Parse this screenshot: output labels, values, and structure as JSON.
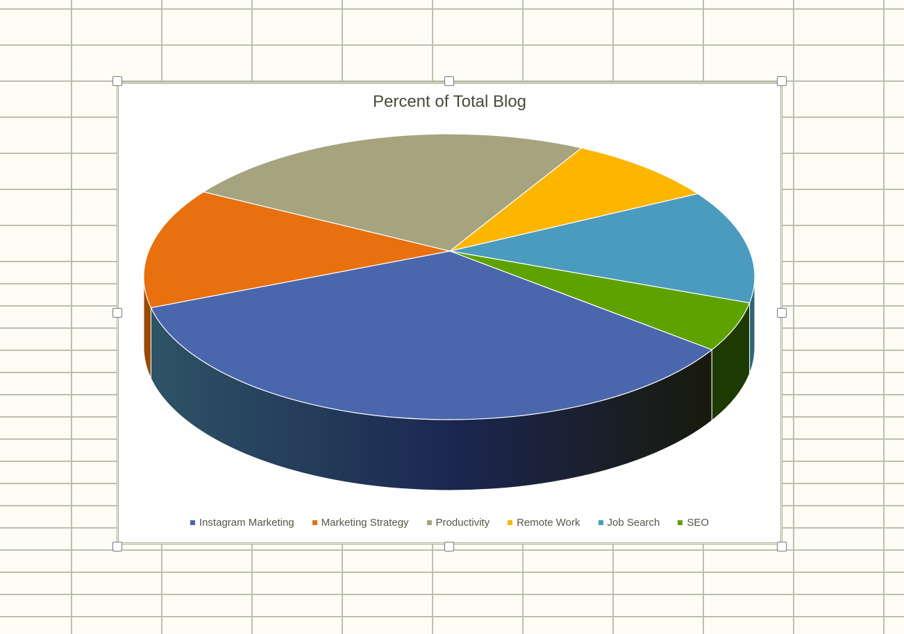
{
  "chart_data": {
    "type": "pie",
    "style": "3d",
    "title": "Percent of Total Blog",
    "legend_position": "bottom",
    "categories": [
      "Instagram Marketing",
      "Marketing Strategy",
      "Productivity",
      "Remote Work",
      "Job Search",
      "SEO"
    ],
    "values": [
      38,
      13.6,
      22,
      8,
      12.8,
      5.6
    ],
    "colors": [
      "#4a66ac",
      "#e8700f",
      "#a5a47e",
      "#fdb600",
      "#4a9bbd",
      "#5ea200"
    ],
    "side_colors": [
      "#22334f",
      "#9a4a08",
      "#6e6d52",
      "#a67800",
      "#2d6478",
      "#1d3a02"
    ]
  }
}
